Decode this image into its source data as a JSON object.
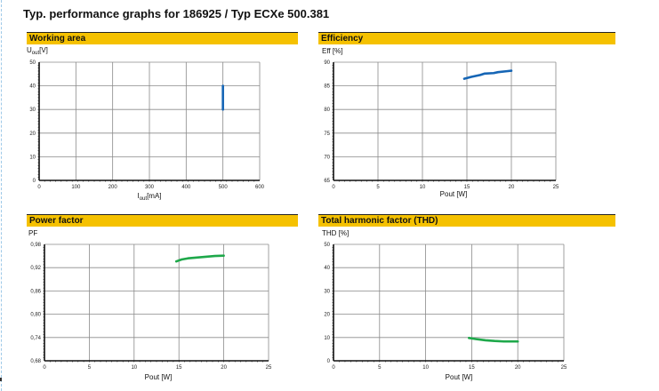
{
  "title": "Typ. performance graphs for 186925 / Typ ECXe 500.381",
  "chart_data": [
    {
      "id": "working-area",
      "type": "line",
      "title": "Working area",
      "ylabel_main": "U",
      "ylabel_sub": "out",
      "ylabel_unit": "[V]",
      "xlabel_main": "I",
      "xlabel_sub": "out",
      "xlabel_unit": "[mA]",
      "xlim": [
        0,
        600
      ],
      "ylim": [
        0,
        50
      ],
      "xticks": [
        0,
        100,
        200,
        300,
        400,
        500,
        600
      ],
      "yticks": [
        0,
        10,
        20,
        30,
        40,
        50
      ],
      "xtick_labels": [
        "0",
        "100",
        "200",
        "300",
        "400",
        "500",
        "600"
      ],
      "ytick_labels": [
        "0",
        "10",
        "20",
        "30",
        "40",
        "50"
      ],
      "grid": true,
      "color": "#1565b5",
      "series": [
        {
          "x": [
            500,
            500
          ],
          "y": [
            30,
            40
          ]
        }
      ]
    },
    {
      "id": "efficiency",
      "type": "line",
      "title": "Efficiency",
      "ylabel": "Eff [%]",
      "xlabel": "Pout [W]",
      "xlim": [
        0,
        25
      ],
      "ylim": [
        65,
        90
      ],
      "xticks": [
        0,
        5,
        10,
        15,
        20,
        25
      ],
      "yticks": [
        65,
        70,
        75,
        80,
        85,
        90
      ],
      "xtick_labels": [
        "0",
        "5",
        "10",
        "15",
        "20",
        "25"
      ],
      "ytick_labels": [
        "65",
        "70",
        "75",
        "80",
        "85",
        "90"
      ],
      "grid": true,
      "color": "#1565b5",
      "series": [
        {
          "x": [
            14.7,
            15.5,
            16.5,
            17.0,
            18.0,
            18.5,
            19.5,
            20.0
          ],
          "y": [
            86.5,
            86.9,
            87.3,
            87.6,
            87.7,
            87.9,
            88.1,
            88.2
          ]
        }
      ]
    },
    {
      "id": "power-factor",
      "type": "line",
      "title": "Power factor",
      "ylabel": "PF",
      "xlabel": "Pout [W]",
      "xlim": [
        0,
        25
      ],
      "ylim": [
        0.68,
        0.98
      ],
      "xticks": [
        0,
        5,
        10,
        15,
        20,
        25
      ],
      "yticks": [
        0.68,
        0.74,
        0.8,
        0.86,
        0.92,
        0.98
      ],
      "xtick_labels": [
        "0",
        "5",
        "10",
        "15",
        "20",
        "25"
      ],
      "ytick_labels": [
        "0,68",
        "0,74",
        "0,80",
        "0,86",
        "0,92",
        "0,98"
      ],
      "grid": true,
      "color": "#1ea84a",
      "series": [
        {
          "x": [
            14.7,
            15.3,
            16.0,
            17.0,
            18.0,
            19.0,
            20.0
          ],
          "y": [
            0.936,
            0.941,
            0.944,
            0.946,
            0.948,
            0.95,
            0.951
          ]
        }
      ]
    },
    {
      "id": "thd",
      "type": "line",
      "title": "Total harmonic factor (THD)",
      "ylabel": "THD [%]",
      "xlabel": "Pout [W]",
      "xlim": [
        0,
        25
      ],
      "ylim": [
        0,
        50
      ],
      "xticks": [
        0,
        5,
        10,
        15,
        20,
        25
      ],
      "yticks": [
        0,
        10,
        20,
        30,
        40,
        50
      ],
      "xtick_labels": [
        "0",
        "5",
        "10",
        "15",
        "20",
        "25"
      ],
      "ytick_labels": [
        "0",
        "10",
        "20",
        "30",
        "40",
        "50"
      ],
      "grid": true,
      "color": "#1ea84a",
      "series": [
        {
          "x": [
            14.7,
            15.5,
            16.5,
            17.5,
            18.5,
            19.5,
            20.0
          ],
          "y": [
            9.8,
            9.3,
            8.8,
            8.5,
            8.3,
            8.3,
            8.3
          ]
        }
      ]
    }
  ]
}
